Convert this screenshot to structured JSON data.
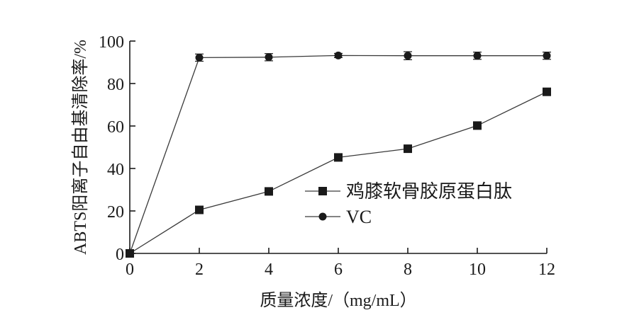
{
  "chart_data": {
    "type": "line",
    "x": [
      0,
      2,
      4,
      6,
      8,
      10,
      12
    ],
    "series": [
      {
        "name": "鸡膝软骨胶原蛋白肽",
        "marker": "square",
        "x": [
          0,
          2,
          4,
          6,
          8,
          10,
          12
        ],
        "values": [
          0,
          20.5,
          29.2,
          45.2,
          49.3,
          60.2,
          76.1
        ],
        "errors": [
          0.8,
          1.5,
          1.6,
          1.7,
          1.5,
          1.5,
          1.6
        ]
      },
      {
        "name": "VC",
        "marker": "circle",
        "x": [
          0,
          2,
          4,
          6,
          8,
          10,
          12
        ],
        "values": [
          0,
          92.2,
          92.4,
          93.2,
          93.1,
          93.1,
          93.1
        ],
        "errors": [
          0.8,
          1.7,
          1.7,
          1.0,
          1.9,
          1.7,
          1.7
        ]
      }
    ],
    "xlabel": "质量浓度/（mg/mL）",
    "ylabel": "ABTS阳离子自由基清除率/%",
    "xlim": [
      0,
      12
    ],
    "ylim": [
      0,
      100
    ],
    "xticks": [
      "0",
      "2",
      "4",
      "6",
      "8",
      "10",
      "12"
    ],
    "yticks": [
      "0",
      "20",
      "40",
      "60",
      "80",
      "100"
    ],
    "grid": false,
    "legend_position": "lower-right",
    "colors": {
      "line": "#3a3a3a",
      "marker": "#1a1a1a",
      "axis": "#1a1a1a"
    }
  }
}
